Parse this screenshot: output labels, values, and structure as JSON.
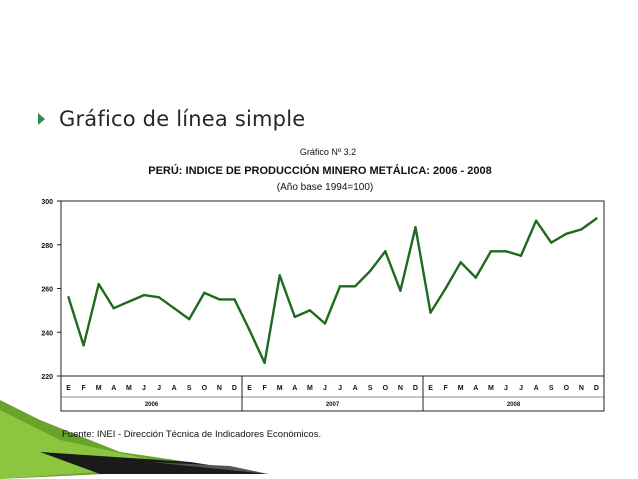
{
  "slide": {
    "bullet_text": "Gráfico de línea simple"
  },
  "chart_data": {
    "type": "line",
    "figure_number": "Gráfico Nº 3.2",
    "title": "PERÚ: INDICE DE PRODUCCIÓN MINERO METÁLICA: 2006 - 2008",
    "subtitle": "(Año base 1994=100)",
    "source": "Fuente: INEI - Dirección Técnica de Indicadores Económicos.",
    "ylim": [
      220,
      300
    ],
    "yticks": [
      220,
      240,
      260,
      280,
      300
    ],
    "grid": false,
    "legend": "none",
    "line_color": "#1e6b1e",
    "month_labels": [
      "E",
      "F",
      "M",
      "A",
      "M",
      "J",
      "J",
      "A",
      "S",
      "O",
      "N",
      "D"
    ],
    "years": [
      "2006",
      "2007",
      "2008"
    ],
    "x": [
      "2006-01",
      "2006-02",
      "2006-03",
      "2006-04",
      "2006-05",
      "2006-06",
      "2006-07",
      "2006-08",
      "2006-09",
      "2006-10",
      "2006-11",
      "2006-12",
      "2007-01",
      "2007-02",
      "2007-03",
      "2007-04",
      "2007-05",
      "2007-06",
      "2007-07",
      "2007-08",
      "2007-09",
      "2007-10",
      "2007-11",
      "2007-12",
      "2008-01",
      "2008-02",
      "2008-03",
      "2008-04",
      "2008-05",
      "2008-06",
      "2008-07",
      "2008-08",
      "2008-09",
      "2008-10",
      "2008-11",
      "2008-12"
    ],
    "values": [
      256,
      234,
      262,
      251,
      254,
      257,
      256,
      251,
      246,
      258,
      255,
      255,
      241,
      226,
      266,
      247,
      250,
      244,
      261,
      261,
      268,
      277,
      259,
      288,
      249,
      260,
      272,
      265,
      277,
      277,
      275,
      291,
      281,
      285,
      287,
      292
    ]
  }
}
